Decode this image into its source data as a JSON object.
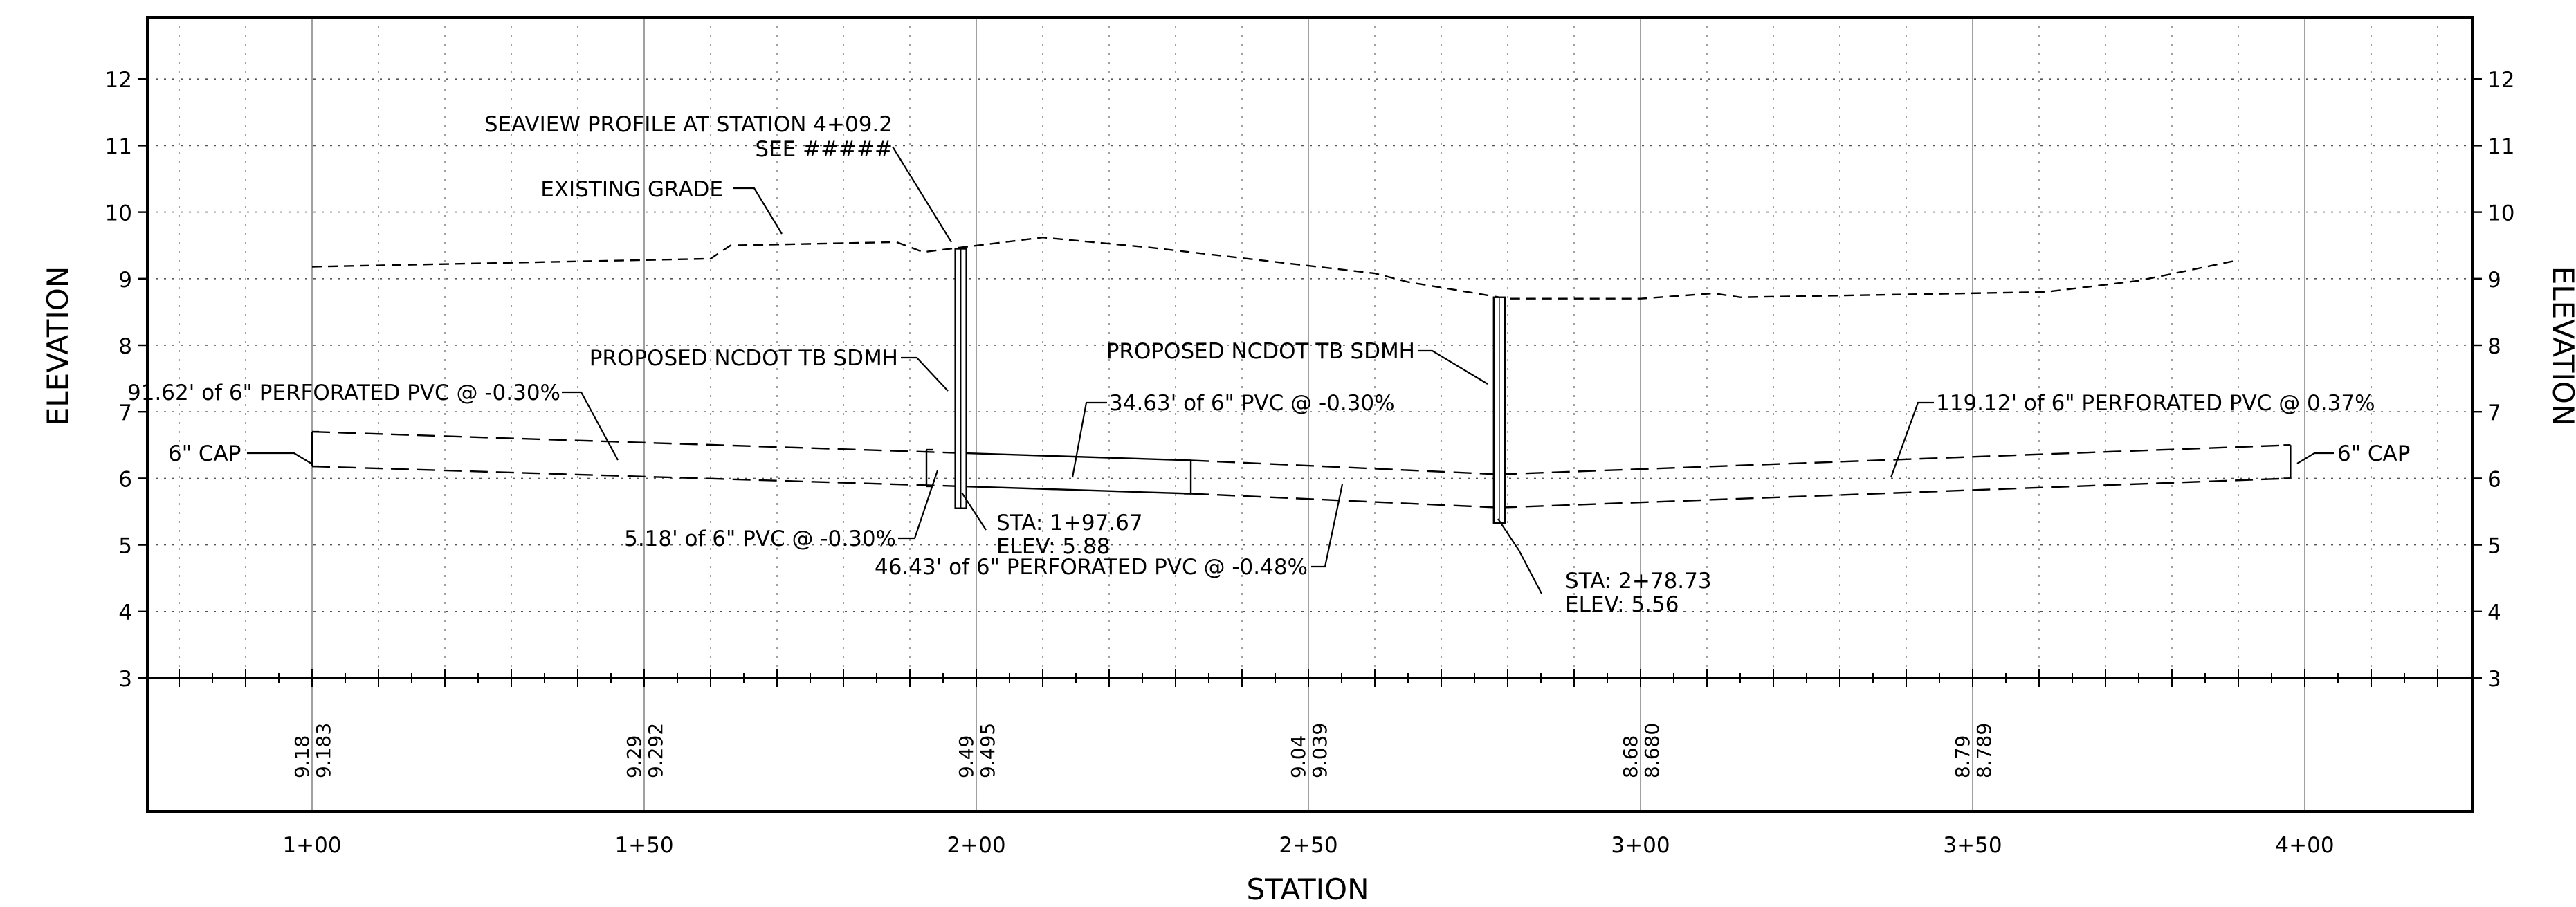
{
  "axes": {
    "x_title": "STATION",
    "y_title_left": "ELEVATION",
    "y_title_right": "ELEVATION",
    "y_ticks": [
      "12",
      "11",
      "10",
      "9",
      "8",
      "7",
      "6",
      "5",
      "4",
      "3"
    ],
    "x_ticks": [
      "1+00",
      "1+50",
      "2+00",
      "2+50",
      "3+00",
      "3+50",
      "4+00"
    ]
  },
  "bottom_band": [
    {
      "existing": "9.18",
      "proposed": "9.183"
    },
    {
      "existing": "9.29",
      "proposed": "9.292"
    },
    {
      "existing": "9.49",
      "proposed": "9.495"
    },
    {
      "existing": "9.04",
      "proposed": "9.039"
    },
    {
      "existing": "8.68",
      "proposed": "8.680"
    },
    {
      "existing": "8.79",
      "proposed": "8.789"
    }
  ],
  "labels": {
    "seaview_line1": "SEAVIEW PROFILE AT STATION 4+09.2",
    "seaview_line2": "SEE #####",
    "existing_grade": "EXISTING GRADE",
    "sdmh_1": "PROPOSED NCDOT TB SDMH",
    "sdmh_2": "PROPOSED NCDOT TB SDMH",
    "pipe_91": "91.62' of 6\" PERFORATED PVC @ -0.30%",
    "pipe_34": "34.63' of 6\" PVC @ -0.30%",
    "pipe_119": "119.12' of 6\" PERFORATED PVC @ 0.37%",
    "cap_left": "6\" CAP",
    "cap_right": "6\" CAP",
    "pipe_5": "5.18' of 6\" PVC @ -0.30%",
    "pipe_46": "46.43' of 6\" PERFORATED PVC @ -0.48%",
    "sta1_line1": "STA: 1+97.67",
    "sta1_line2": "ELEV: 5.88",
    "sta2_line1": "STA: 2+78.73",
    "sta2_line2": "ELEV: 5.56"
  },
  "chart_data": {
    "type": "line",
    "xlabel": "STATION",
    "ylabel": "ELEVATION",
    "ylim": [
      3,
      12
    ],
    "xlim": [
      75,
      425
    ],
    "series": [
      {
        "name": "EXISTING GRADE",
        "x": [
          100,
          160,
          163,
          188,
          192,
          210,
          226,
          260,
          265,
          280,
          300,
          311,
          315,
          361,
          375,
          390
        ],
        "y": [
          9.18,
          9.3,
          9.5,
          9.55,
          9.4,
          9.62,
          9.47,
          9.08,
          8.95,
          8.7,
          8.7,
          8.78,
          8.72,
          8.8,
          8.97,
          9.28
        ]
      },
      {
        "x": [
          100,
          197.67
        ],
        "y": [
          6.7,
          6.38
        ]
      },
      {
        "x": [
          100,
          197.67
        ],
        "y": [
          6.18,
          5.88
        ]
      },
      {
        "x": [
          197.67,
          232.3
        ],
        "y": [
          6.38,
          6.27
        ]
      },
      {
        "x": [
          197.67,
          232.3
        ],
        "y": [
          5.88,
          5.77
        ]
      },
      {
        "x": [
          232.3,
          278.73
        ],
        "y": [
          6.27,
          6.06
        ]
      },
      {
        "x": [
          232.3,
          278.73
        ],
        "y": [
          5.77,
          5.56
        ]
      },
      {
        "x": [
          278.73,
          397.85
        ],
        "y": [
          6.06,
          6.5
        ]
      },
      {
        "x": [
          278.73,
          397.85
        ],
        "y": [
          5.56,
          6.0
        ]
      }
    ]
  }
}
